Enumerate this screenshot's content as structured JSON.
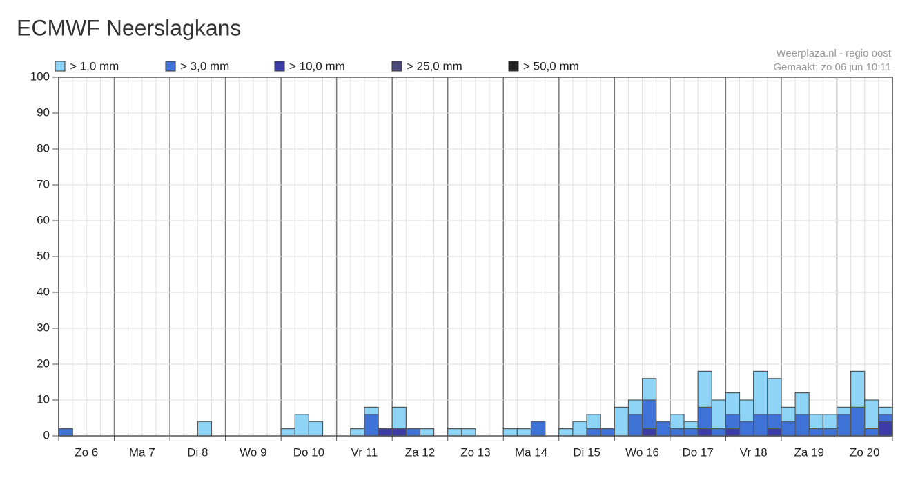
{
  "chart_data": {
    "type": "bar",
    "title": "ECMWF Neerslagkans",
    "source": "Weerplaza.nl - regio oost",
    "created": "Gemaakt: zo 06 jun 10:11",
    "categories": [
      null,
      "Zo 6",
      null,
      null,
      null,
      "Ma 7",
      null,
      null,
      null,
      "Di 8",
      null,
      null,
      null,
      "Wo 9",
      null,
      null,
      null,
      "Do 10",
      null,
      null,
      null,
      "Vr 11",
      null,
      null,
      null,
      "Za 12",
      null,
      null,
      null,
      "Zo 13",
      null,
      null,
      null,
      "Ma 14",
      null,
      null,
      null,
      "Di 15",
      null,
      null,
      null,
      "Wo 16",
      null,
      null,
      null,
      "Do 17",
      null,
      null,
      null,
      "Vr 18",
      null,
      null,
      null,
      "Za 19",
      null,
      null,
      null,
      "Zo 20",
      null,
      null
    ],
    "series": [
      {
        "name": "> 1,0 mm",
        "color": "#8dd4f6",
        "values": [
          2,
          0,
          0,
          0,
          0,
          0,
          0,
          0,
          0,
          0,
          4,
          0,
          0,
          0,
          0,
          0,
          2,
          6,
          4,
          0,
          0,
          2,
          8,
          2,
          8,
          2,
          2,
          0,
          2,
          2,
          0,
          0,
          2,
          2,
          4,
          0,
          2,
          4,
          6,
          2,
          8,
          10,
          16,
          4,
          6,
          4,
          18,
          10,
          12,
          10,
          18,
          16,
          8,
          12,
          6,
          6,
          8,
          18,
          10,
          8
        ]
      },
      {
        "name": "> 3,0 mm",
        "color": "#3f73d8",
        "values": [
          2,
          0,
          0,
          0,
          0,
          0,
          0,
          0,
          0,
          0,
          0,
          0,
          0,
          0,
          0,
          0,
          0,
          0,
          0,
          0,
          0,
          0,
          6,
          2,
          2,
          2,
          0,
          0,
          0,
          0,
          0,
          0,
          0,
          0,
          4,
          0,
          0,
          0,
          2,
          2,
          0,
          6,
          10,
          4,
          2,
          2,
          8,
          2,
          6,
          4,
          6,
          6,
          4,
          6,
          2,
          2,
          6,
          8,
          2,
          6
        ]
      },
      {
        "name": "> 10,0 mm",
        "color": "#3b3ca6",
        "values": [
          0,
          0,
          0,
          0,
          0,
          0,
          0,
          0,
          0,
          0,
          0,
          0,
          0,
          0,
          0,
          0,
          0,
          0,
          0,
          0,
          0,
          0,
          0,
          2,
          2,
          0,
          0,
          0,
          0,
          0,
          0,
          0,
          0,
          0,
          0,
          0,
          0,
          0,
          0,
          0,
          0,
          0,
          2,
          0,
          0,
          0,
          2,
          0,
          2,
          0,
          0,
          2,
          0,
          0,
          0,
          0,
          0,
          0,
          0,
          4
        ]
      },
      {
        "name": "> 25,0 mm",
        "color": "#4b4a7c",
        "values": [
          0,
          0,
          0,
          0,
          0,
          0,
          0,
          0,
          0,
          0,
          0,
          0,
          0,
          0,
          0,
          0,
          0,
          0,
          0,
          0,
          0,
          0,
          0,
          0,
          0,
          0,
          0,
          0,
          0,
          0,
          0,
          0,
          0,
          0,
          0,
          0,
          0,
          0,
          0,
          0,
          0,
          0,
          0,
          0,
          0,
          0,
          0,
          0,
          0,
          0,
          0,
          0,
          0,
          0,
          0,
          0,
          0,
          0,
          0,
          0
        ]
      },
      {
        "name": "> 50,0 mm",
        "color": "#222222",
        "values": [
          0,
          0,
          0,
          0,
          0,
          0,
          0,
          0,
          0,
          0,
          0,
          0,
          0,
          0,
          0,
          0,
          0,
          0,
          0,
          0,
          0,
          0,
          0,
          0,
          0,
          0,
          0,
          0,
          0,
          0,
          0,
          0,
          0,
          0,
          0,
          0,
          0,
          0,
          0,
          0,
          0,
          0,
          0,
          0,
          0,
          0,
          0,
          0,
          0,
          0,
          0,
          0,
          0,
          0,
          0,
          0,
          0,
          0,
          0,
          0
        ]
      }
    ],
    "ylim": [
      0,
      100
    ],
    "yticks": [
      0,
      10,
      20,
      30,
      40,
      50,
      60,
      70,
      80,
      90,
      100
    ],
    "grid": true
  }
}
